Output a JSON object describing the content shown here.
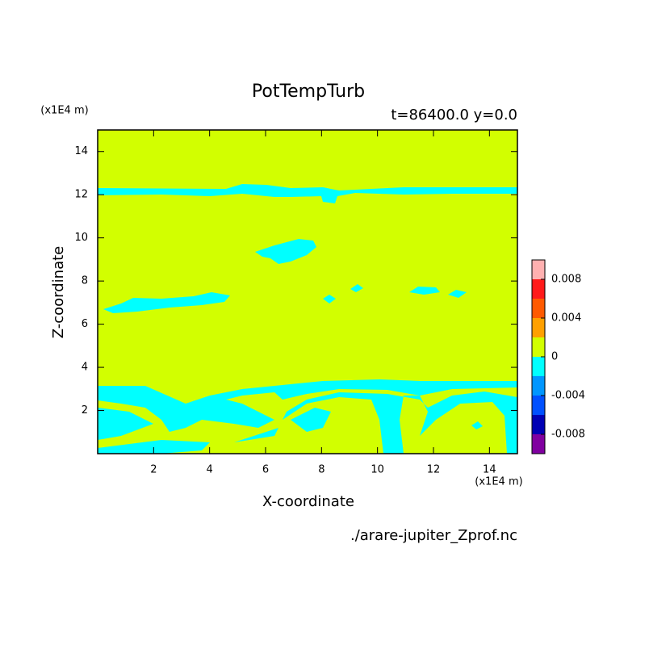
{
  "chart_data": {
    "type": "contour",
    "title": "PotTempTurb",
    "subtitle": "t=86400.0 y=0.0",
    "x_label": "X-coordinate",
    "y_label": "Z-coordinate",
    "x_unit": "(x1E4 m)",
    "y_unit": "(x1E4 m)",
    "source": "./arare-jupiter_Zprof.nc",
    "xlim": [
      0,
      15
    ],
    "xticks": [
      2,
      4,
      6,
      8,
      10,
      12,
      14
    ],
    "ylim": [
      0,
      15
    ],
    "yticks": [
      2,
      4,
      6,
      8,
      10,
      12,
      14
    ],
    "colorbar": {
      "levels": [
        -0.01,
        -0.008,
        -0.006,
        -0.004,
        -0.002,
        0,
        0.002,
        0.004,
        0.006,
        0.008,
        0.01
      ],
      "colors": [
        "#8000a0",
        "#0000b4",
        "#0050ff",
        "#0096ff",
        "#00ffff",
        "#d2ff00",
        "#ffa000",
        "#ff5a00",
        "#ff1a1a",
        "#ffb0b0"
      ],
      "ticks": [
        -0.008,
        -0.004,
        0,
        0.004,
        0.008
      ]
    }
  }
}
